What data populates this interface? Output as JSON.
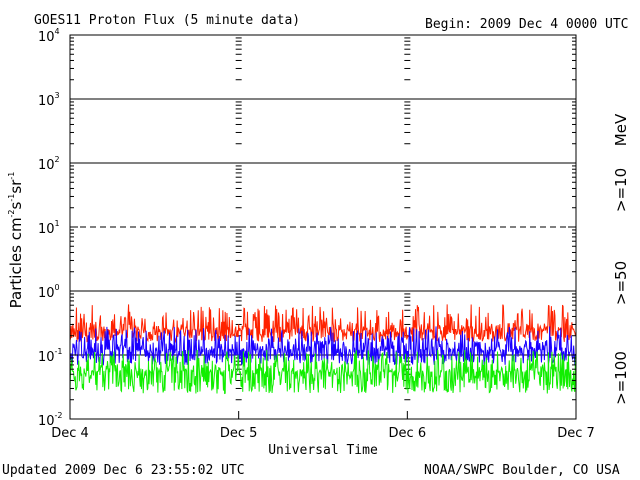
{
  "header": {
    "title": "GOES11 Proton Flux (5 minute data)",
    "begin": "Begin: 2009 Dec 4 0000 UTC"
  },
  "footer": {
    "updated": "Updated 2009 Dec  6 23:55:02 UTC",
    "source": "NOAA/SWPC Boulder, CO USA"
  },
  "colors": {
    "ge10": "#ff2200",
    "ge50": "#1a00ff",
    "ge100": "#11ee00",
    "axis": "#000000"
  },
  "chart_data": {
    "type": "line",
    "title": "GOES11 Proton Flux (5 minute data)",
    "xlabel": "Universal Time",
    "ylabel": {
      "base": "Particles cm",
      "e1": "-2",
      "mid1": "s",
      "e2": "-1",
      "mid2": "sr",
      "e3": "-1"
    },
    "yscale": "log",
    "ylim": [
      0.01,
      10000
    ],
    "y_ticks": [
      {
        "base": "10",
        "exp": "4"
      },
      {
        "base": "10",
        "exp": "3"
      },
      {
        "base": "10",
        "exp": "2"
      },
      {
        "base": "10",
        "exp": "1"
      },
      {
        "base": "10",
        "exp": "0"
      },
      {
        "base": "10",
        "exp": "-1"
      },
      {
        "base": "10",
        "exp": "-2"
      }
    ],
    "x_ticks": [
      "Dec 4",
      "Dec 5",
      "Dec 6",
      "Dec 7"
    ],
    "xlim_days": [
      0,
      3
    ],
    "sample_interval_minutes": 5,
    "unit_label": "MeV",
    "series": [
      {
        "name": ">=10",
        "color": "#ff2200",
        "typical": 0.25,
        "min": 0.16,
        "max": 0.62
      },
      {
        "name": ">=50",
        "color": "#1a00ff",
        "typical": 0.12,
        "min": 0.07,
        "max": 0.28
      },
      {
        "name": ">=100",
        "color": "#11ee00",
        "typical": 0.055,
        "min": 0.025,
        "max": 0.12
      }
    ]
  }
}
